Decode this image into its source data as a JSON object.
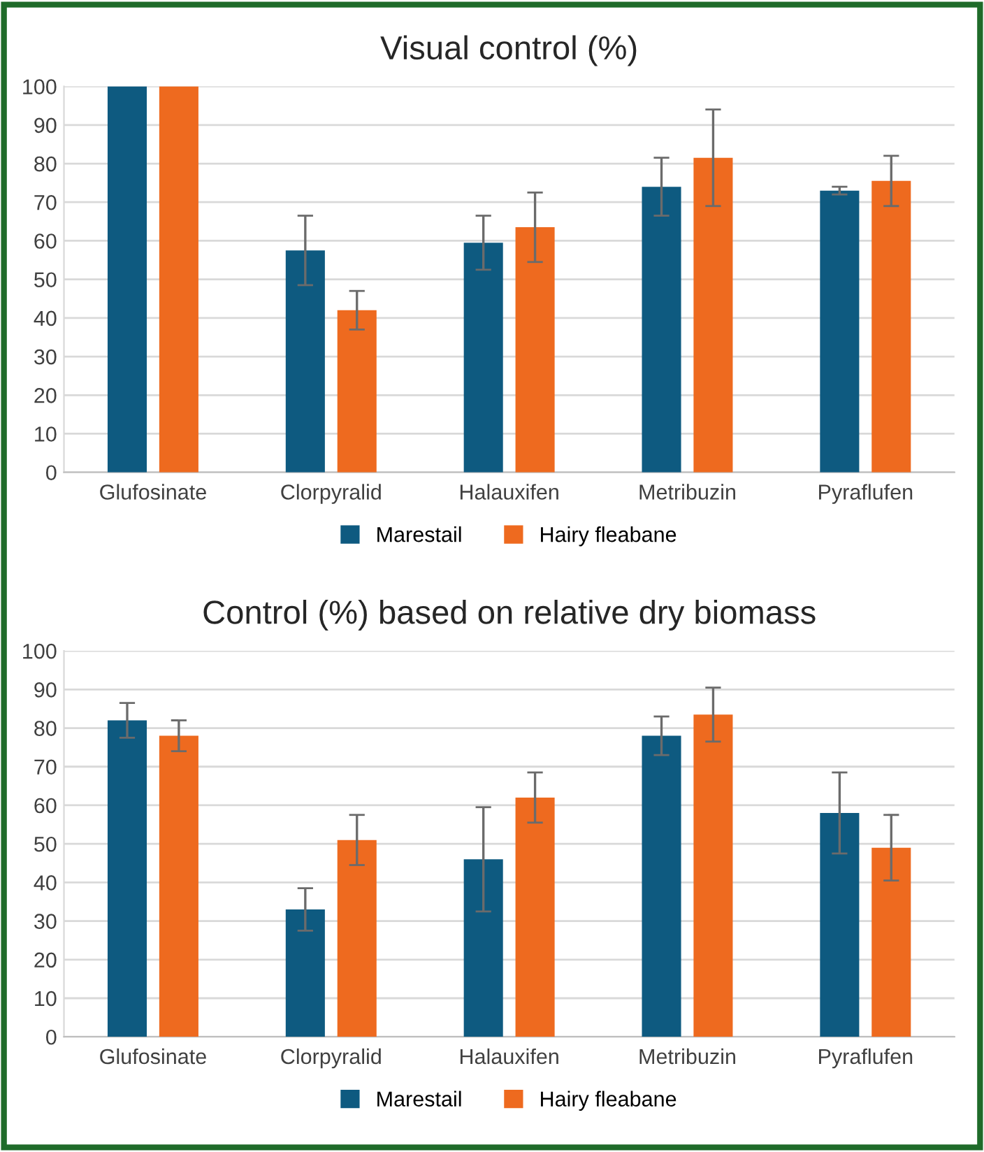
{
  "chart_data": [
    {
      "type": "bar",
      "title": "Visual control (%)",
      "categories": [
        "Glufosinate",
        "Clorpyralid",
        "Halauxifen",
        "Metribuzin",
        "Pyraflufen"
      ],
      "series": [
        {
          "name": "Marestail",
          "color": "#0e5a80",
          "values": [
            100,
            57.5,
            59.5,
            74,
            73
          ],
          "errors": [
            null,
            9,
            7,
            7.5,
            1
          ]
        },
        {
          "name": "Hairy fleabane",
          "color": "#ee6a1f",
          "values": [
            100,
            42,
            63.5,
            81.5,
            75.5
          ],
          "errors": [
            null,
            5,
            9,
            12.5,
            6.5
          ]
        }
      ],
      "ylim": [
        0,
        100
      ],
      "yticks": [
        0,
        10,
        20,
        30,
        40,
        50,
        60,
        70,
        80,
        90,
        100
      ],
      "grid": "y",
      "legend": "bottom"
    },
    {
      "type": "bar",
      "title": "Control (%) based on relative dry biomass",
      "categories": [
        "Glufosinate",
        "Clorpyralid",
        "Halauxifen",
        "Metribuzin",
        "Pyraflufen"
      ],
      "series": [
        {
          "name": "Marestail",
          "color": "#0e5a80",
          "values": [
            82,
            33,
            46,
            78,
            58
          ],
          "errors": [
            4.5,
            5.5,
            13.5,
            5,
            10.5
          ]
        },
        {
          "name": "Hairy fleabane",
          "color": "#ee6a1f",
          "values": [
            78,
            51,
            62,
            83.5,
            49
          ],
          "errors": [
            4,
            6.5,
            6.5,
            7,
            8.5
          ]
        }
      ],
      "ylim": [
        0,
        100
      ],
      "yticks": [
        0,
        10,
        20,
        30,
        40,
        50,
        60,
        70,
        80,
        90,
        100
      ],
      "grid": "y",
      "legend": "bottom"
    }
  ]
}
